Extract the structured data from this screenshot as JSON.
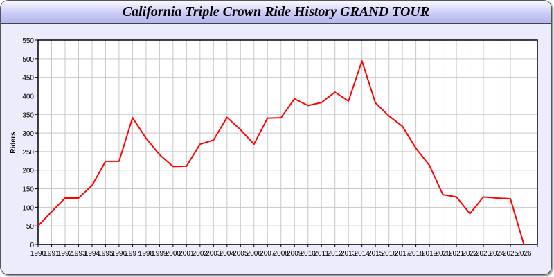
{
  "chart_data": {
    "type": "line",
    "title": "California Triple Crown Ride History GRAND TOUR",
    "xlabel": "",
    "ylabel": "Riders",
    "xlim": [
      1990,
      2027
    ],
    "ylim": [
      0,
      550
    ],
    "yticks": [
      0,
      50,
      100,
      150,
      200,
      250,
      300,
      350,
      400,
      450,
      500,
      550
    ],
    "grid": true,
    "line_color": "#ff0000",
    "x": [
      1990,
      1991,
      1992,
      1993,
      1994,
      1995,
      1996,
      1997,
      1998,
      1999,
      2000,
      2001,
      2002,
      2003,
      2004,
      2005,
      2006,
      2007,
      2008,
      2009,
      2010,
      2011,
      2012,
      2013,
      2014,
      2015,
      2016,
      2017,
      2018,
      2019,
      2020,
      2021,
      2022,
      2023,
      2024,
      2025,
      2026
    ],
    "series": [
      {
        "values": [
          50,
          88,
          125,
          125,
          159,
          224,
          224,
          341,
          286,
          242,
          210,
          211,
          270,
          281,
          342,
          309,
          270,
          340,
          341,
          392,
          374,
          382,
          410,
          386,
          494,
          381,
          346,
          318,
          259,
          213,
          134,
          128,
          83,
          128,
          125,
          123,
          0
        ]
      }
    ]
  }
}
